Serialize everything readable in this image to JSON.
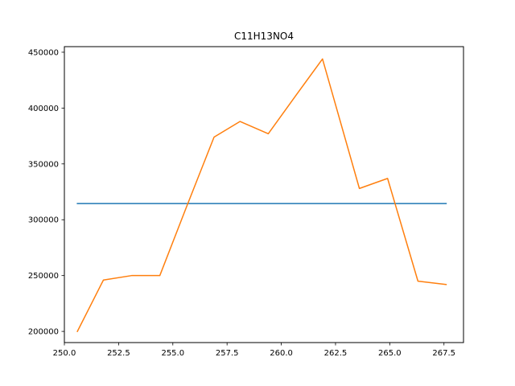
{
  "chart_data": {
    "type": "line",
    "title": "C11H13NO4",
    "xlabel": "",
    "ylabel": "",
    "xlim": [
      250.0,
      268.4
    ],
    "ylim": [
      190000,
      455000
    ],
    "xticks": [
      250.0,
      252.5,
      255.0,
      257.5,
      260.0,
      262.5,
      265.0,
      267.5
    ],
    "xtick_labels": [
      "250.0",
      "252.5",
      "255.0",
      "257.5",
      "260.0",
      "262.5",
      "265.0",
      "267.5"
    ],
    "yticks": [
      200000,
      250000,
      300000,
      350000,
      400000,
      450000
    ],
    "ytick_labels": [
      "200000",
      "250000",
      "300000",
      "350000",
      "400000",
      "450000"
    ],
    "grid": false,
    "series": [
      {
        "color": "#1f77b4",
        "x": [
          250.6,
          267.6
        ],
        "y": [
          314500,
          314500
        ]
      },
      {
        "color": "#ff7f0e",
        "x": [
          250.6,
          251.8,
          253.1,
          254.4,
          255.6,
          256.9,
          258.1,
          259.4,
          260.7,
          261.9,
          263.6,
          264.9,
          266.3,
          267.6
        ],
        "y": [
          200000,
          246000,
          250000,
          250000,
          310000,
          374000,
          388000,
          377000,
          412000,
          444000,
          328000,
          337000,
          245000,
          242000
        ]
      }
    ]
  }
}
